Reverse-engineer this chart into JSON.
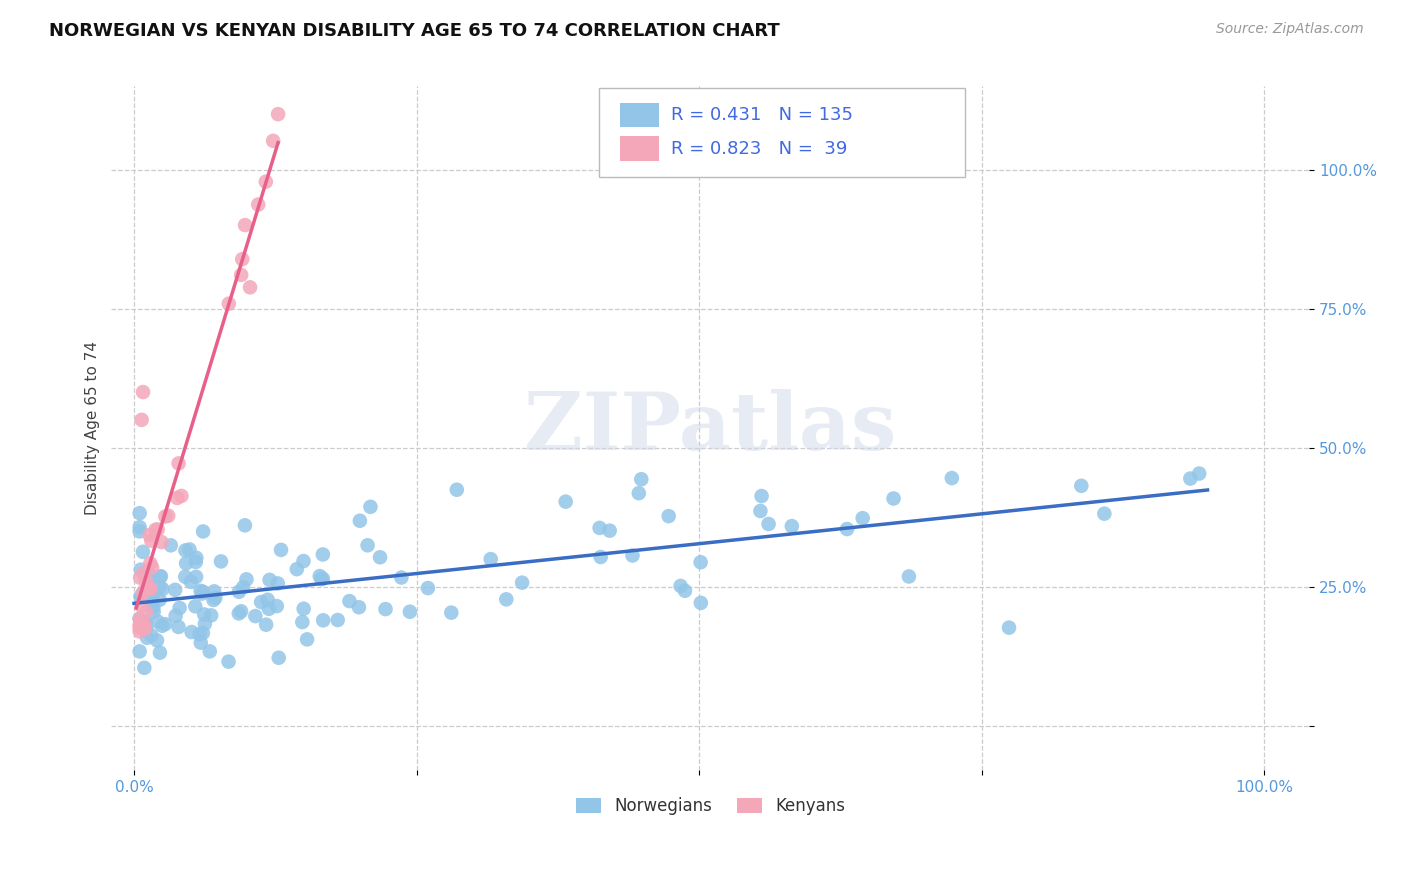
{
  "title": "NORWEGIAN VS KENYAN DISABILITY AGE 65 TO 74 CORRELATION CHART",
  "source": "Source: ZipAtlas.com",
  "ylabel": "Disability Age 65 to 74",
  "norwegian_R": 0.431,
  "norwegian_N": 135,
  "kenyan_R": 0.823,
  "kenyan_N": 39,
  "norwegian_color": "#92C5E8",
  "kenyan_color": "#F4A7B9",
  "norwegian_line_color": "#3A6DC4",
  "kenyan_line_color": "#E8608A",
  "background_color": "#ffffff",
  "grid_color": "#cccccc",
  "watermark": "ZIPatlas",
  "title_fontsize": 13,
  "axis_label_fontsize": 11,
  "tick_fontsize": 11,
  "legend_fontsize": 13,
  "source_fontsize": 10,
  "legend_text_color": "#4169E1"
}
